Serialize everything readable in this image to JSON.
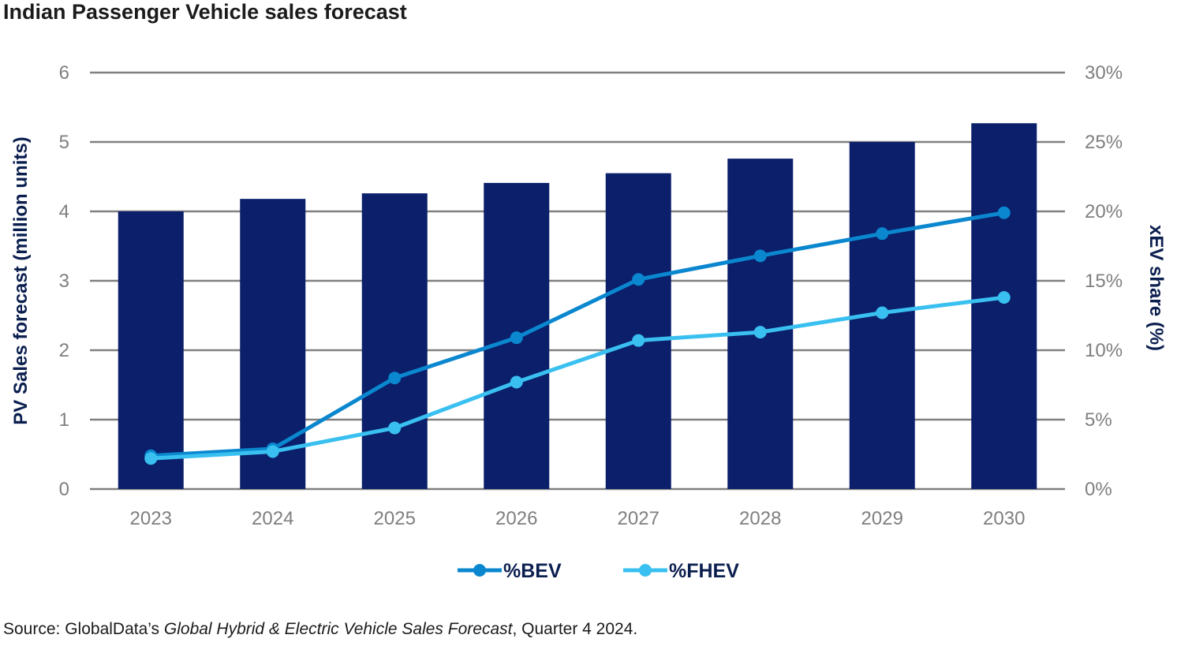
{
  "title": "Indian Passenger Vehicle sales forecast",
  "source": {
    "prefix": "Source: GlobalData’s ",
    "publication": "Global Hybrid & Electric Vehicle Sales Forecast",
    "suffix": ", Quarter 4 2024."
  },
  "colors": {
    "bar": "#0b1f6b",
    "bev": "#0a87cf",
    "fhev": "#39c0f0",
    "grid": "#808080",
    "axis_text": "#7f7f7f",
    "axis_title": "#0b1f4f"
  },
  "chart_data": {
    "type": "bar",
    "categories": [
      "2023",
      "2024",
      "2025",
      "2026",
      "2027",
      "2028",
      "2029",
      "2030"
    ],
    "left_axis": {
      "label": "PV Sales forecast (million units)",
      "ylim": [
        0,
        6
      ],
      "ticks": [
        "0",
        "1",
        "2",
        "3",
        "4",
        "5",
        "6"
      ]
    },
    "right_axis": {
      "label": "xEV share (%)",
      "ylim": [
        0,
        30
      ],
      "ticks": [
        "0%",
        "5%",
        "10%",
        "15%",
        "20%",
        "25%",
        "30%"
      ]
    },
    "bars": {
      "values": [
        4.0,
        4.18,
        4.26,
        4.41,
        4.55,
        4.76,
        5.0,
        5.27
      ]
    },
    "series": [
      {
        "name": "%BEV",
        "type": "line",
        "axis": "right",
        "values": [
          2.4,
          2.9,
          8.0,
          10.9,
          15.1,
          16.8,
          18.4,
          19.9
        ]
      },
      {
        "name": "%FHEV",
        "type": "line",
        "axis": "right",
        "values": [
          2.2,
          2.7,
          4.4,
          7.7,
          10.7,
          11.3,
          12.7,
          13.8
        ]
      }
    ],
    "grid": true,
    "legend_position": "bottom"
  }
}
